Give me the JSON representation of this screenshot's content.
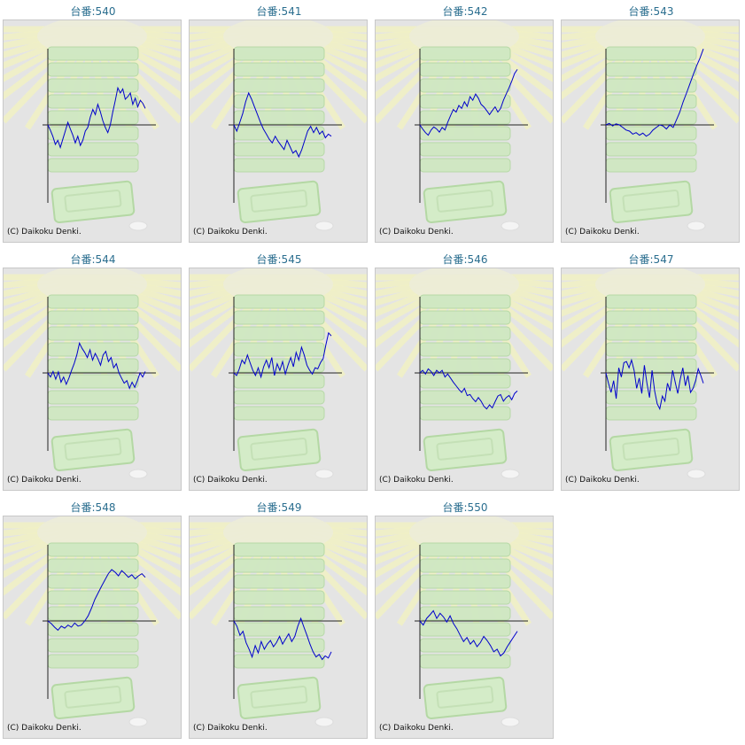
{
  "watermark": "(C) Daikoku Denki.",
  "colors": {
    "line": "#0000cc",
    "title": "#2a6e8f",
    "panel": "#e4e4e4",
    "axis": "#222222"
  },
  "chart_data": [
    {
      "type": "line",
      "title": "台番:540",
      "values": [
        0,
        -10,
        -22,
        -38,
        -30,
        -44,
        -28,
        -12,
        5,
        -8,
        -20,
        -35,
        -22,
        -40,
        -30,
        -12,
        -5,
        15,
        30,
        20,
        40,
        26,
        8,
        -5,
        -15,
        0,
        25,
        48,
        72,
        62,
        70,
        50,
        55,
        62,
        40,
        52,
        35,
        48,
        42,
        32
      ]
    },
    {
      "type": "line",
      "title": "台番:541",
      "values": [
        0,
        -12,
        5,
        22,
        45,
        62,
        50,
        35,
        20,
        5,
        -8,
        -18,
        -28,
        -35,
        -22,
        -32,
        -40,
        -48,
        -30,
        -42,
        -55,
        -50,
        -62,
        -48,
        -30,
        -12,
        -3,
        -15,
        -5,
        -18,
        -12,
        -25,
        -18,
        -22
      ]
    },
    {
      "type": "line",
      "title": "台番:542",
      "values": [
        0,
        -8,
        -15,
        -20,
        -10,
        -4,
        -8,
        -14,
        -5,
        -10,
        5,
        18,
        30,
        25,
        38,
        32,
        45,
        36,
        55,
        48,
        60,
        52,
        40,
        35,
        28,
        20,
        28,
        35,
        25,
        32,
        48,
        60,
        72,
        85,
        100,
        108
      ]
    },
    {
      "type": "line",
      "title": "台番:543",
      "values": [
        0,
        3,
        -2,
        2,
        0,
        -5,
        -10,
        -12,
        -18,
        -15,
        -20,
        -16,
        -22,
        -18,
        -10,
        -5,
        0,
        -2,
        -8,
        0,
        -5,
        10,
        25,
        45,
        62,
        80,
        98,
        115,
        130,
        148
      ]
    },
    {
      "type": "line",
      "title": "台番:544",
      "values": [
        0,
        -8,
        3,
        -12,
        2,
        -18,
        -8,
        -22,
        -10,
        5,
        18,
        35,
        58,
        48,
        40,
        30,
        45,
        25,
        38,
        28,
        15,
        35,
        42,
        22,
        30,
        10,
        18,
        0,
        -10,
        -20,
        -15,
        -30,
        -18,
        -28,
        -15,
        0,
        -8,
        3
      ]
    },
    {
      "type": "line",
      "title": "台番:545",
      "values": [
        0,
        -5,
        8,
        25,
        18,
        35,
        20,
        5,
        -5,
        10,
        -8,
        12,
        25,
        10,
        30,
        -5,
        18,
        5,
        22,
        -2,
        15,
        30,
        12,
        40,
        25,
        50,
        35,
        15,
        5,
        -2,
        10,
        8,
        20,
        28,
        55,
        78,
        72
      ]
    },
    {
      "type": "line",
      "title": "台番:546",
      "values": [
        0,
        5,
        -2,
        8,
        3,
        -5,
        5,
        0,
        5,
        -8,
        -2,
        -10,
        -18,
        -25,
        -32,
        -38,
        -30,
        -44,
        -42,
        -50,
        -56,
        -48,
        -55,
        -65,
        -70,
        -62,
        -68,
        -56,
        -45,
        -42,
        -55,
        -48,
        -44,
        -52,
        -40,
        -35
      ]
    },
    {
      "type": "line",
      "title": "台番:547",
      "values": [
        0,
        -20,
        -38,
        -15,
        -50,
        10,
        -8,
        20,
        22,
        10,
        25,
        5,
        -30,
        -10,
        -40,
        15,
        -20,
        -48,
        5,
        -35,
        -60,
        -70,
        -45,
        -55,
        -20,
        -35,
        5,
        -18,
        -40,
        -12,
        10,
        -25,
        -5,
        -38,
        -30,
        -15,
        8,
        -5,
        -20
      ]
    },
    {
      "type": "line",
      "title": "台番:548",
      "values": [
        0,
        -5,
        -12,
        -18,
        -10,
        -14,
        -8,
        -12,
        -4,
        -10,
        -8,
        0,
        10,
        25,
        42,
        55,
        68,
        80,
        92,
        100,
        95,
        88,
        98,
        92,
        85,
        90,
        82,
        88,
        92,
        85
      ]
    },
    {
      "type": "line",
      "title": "台番:549",
      "values": [
        0,
        -10,
        -28,
        -20,
        -42,
        -55,
        -70,
        -48,
        -62,
        -40,
        -55,
        -45,
        -38,
        -50,
        -42,
        -30,
        -45,
        -35,
        -25,
        -40,
        -30,
        -10,
        5,
        -12,
        -28,
        -45,
        -60,
        -70,
        -65,
        -75,
        -68,
        -72,
        -60
      ]
    },
    {
      "type": "line",
      "title": "台番:550",
      "values": [
        0,
        -8,
        5,
        12,
        20,
        5,
        15,
        8,
        -2,
        10,
        -5,
        -15,
        -28,
        -40,
        -32,
        -45,
        -38,
        -50,
        -42,
        -30,
        -38,
        -48,
        -60,
        -55,
        -68,
        -62,
        -50,
        -40,
        -30,
        -20
      ]
    }
  ]
}
